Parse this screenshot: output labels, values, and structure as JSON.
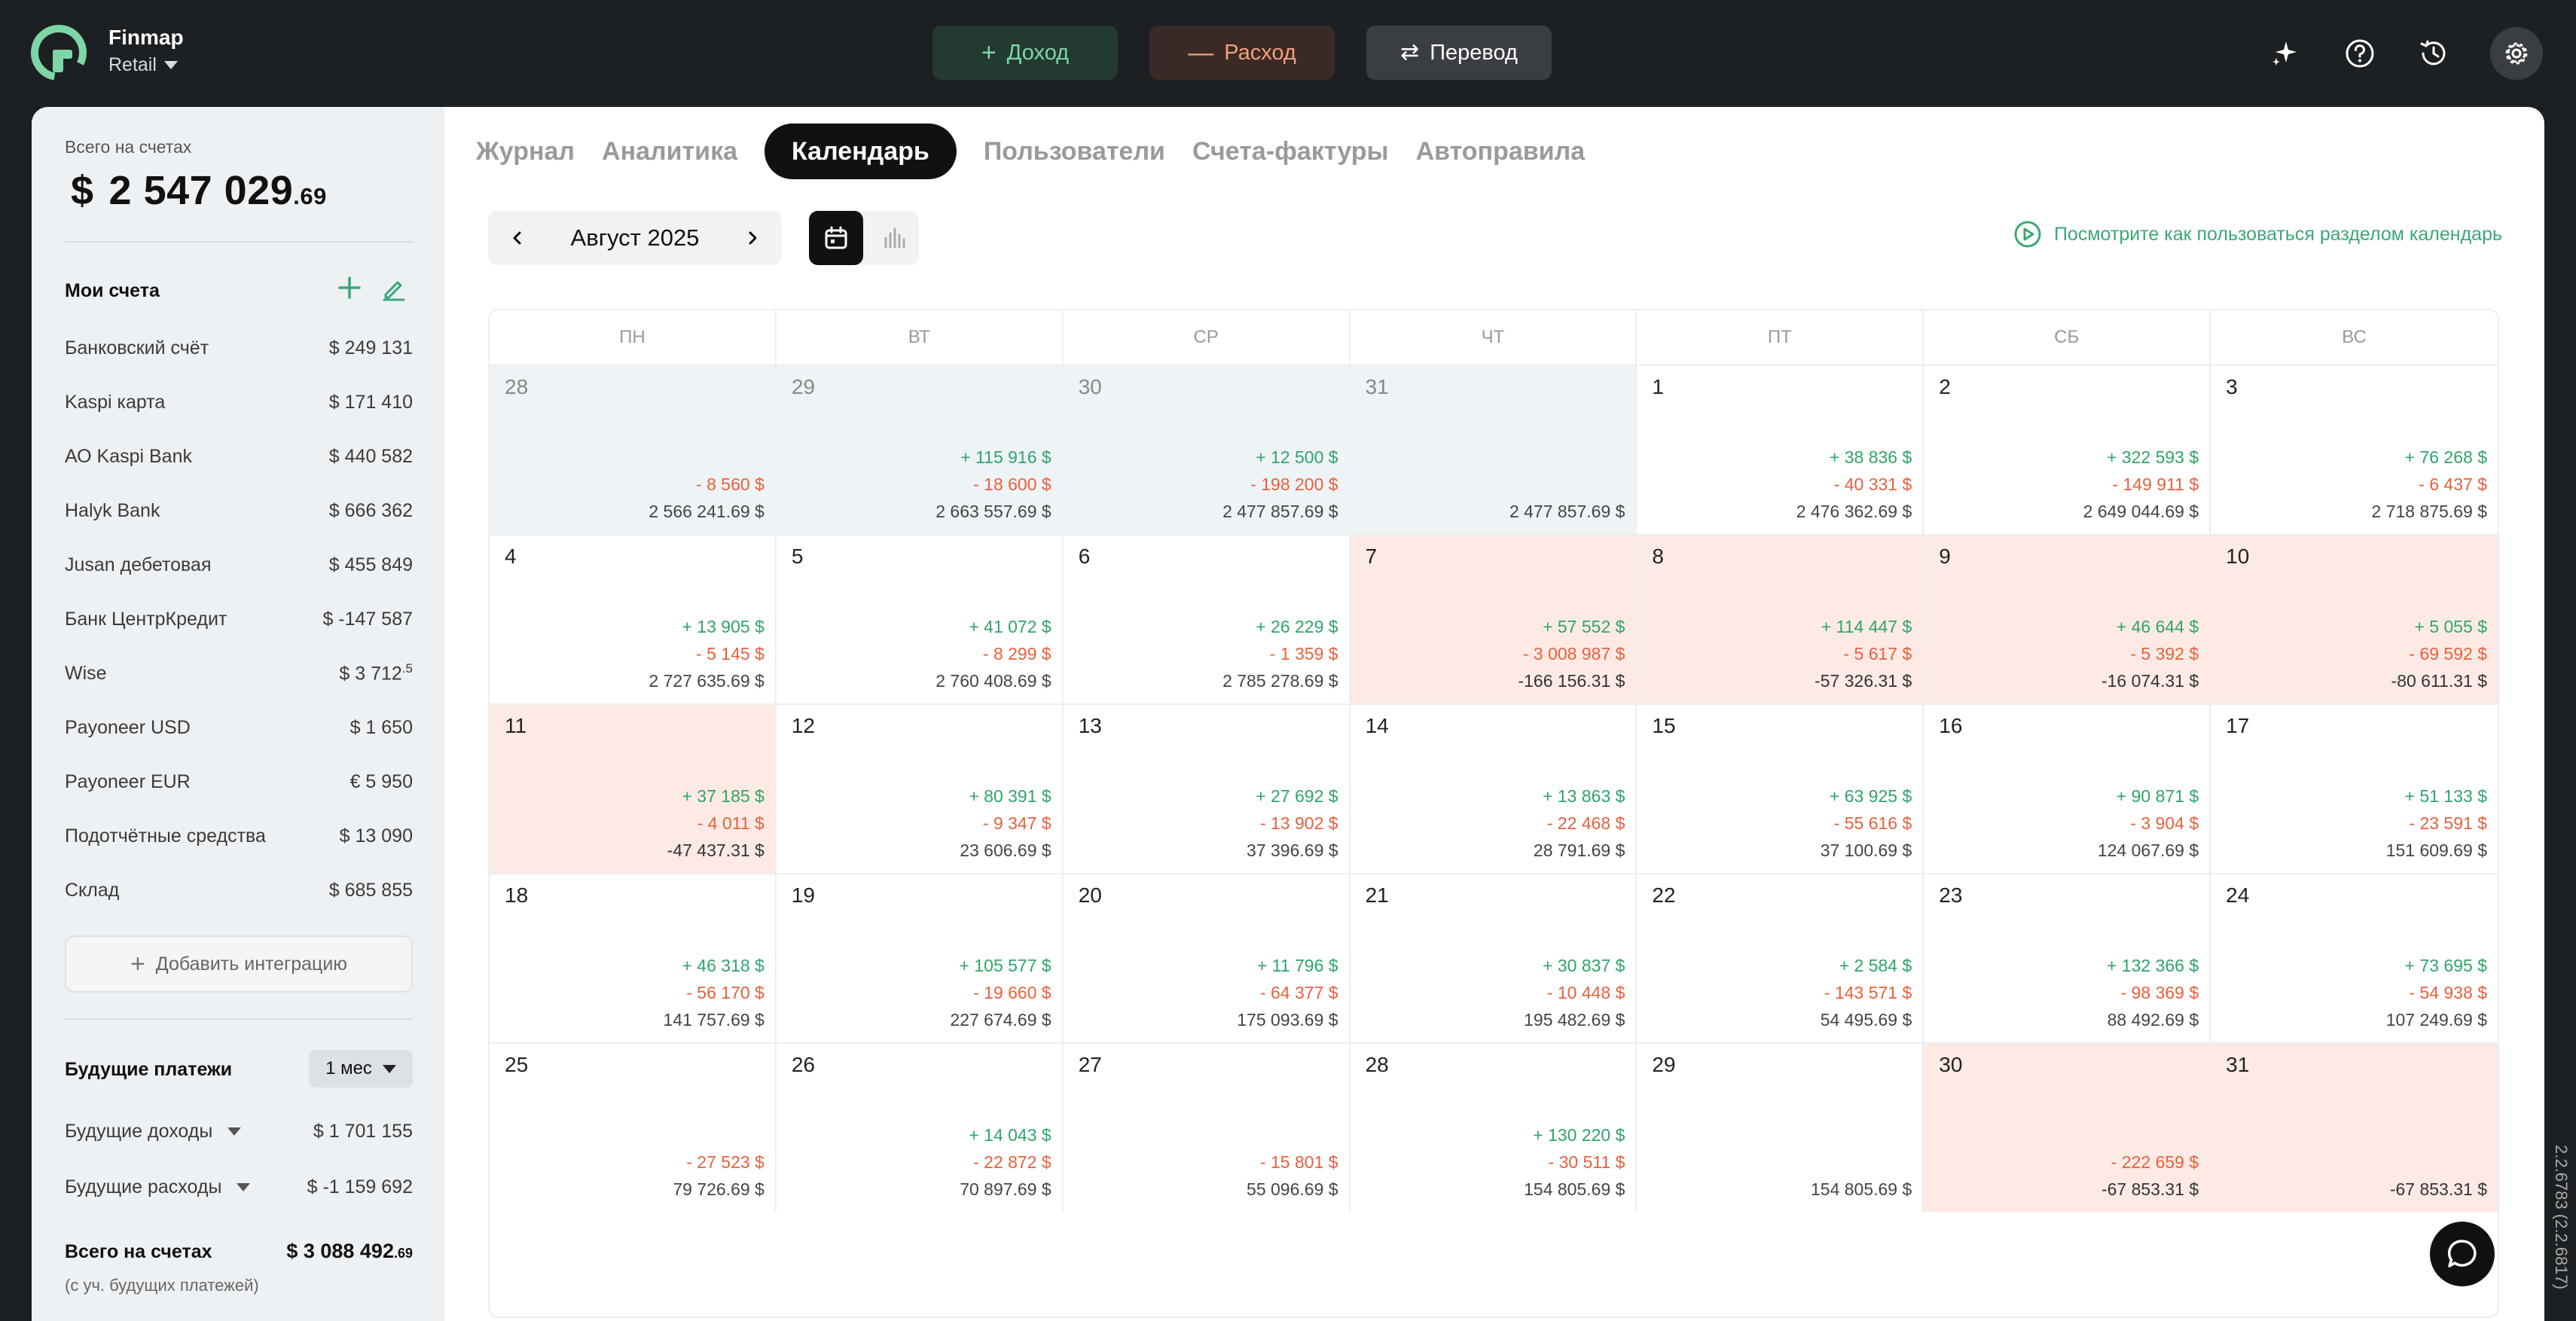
{
  "brand": {
    "name": "Finmap",
    "org": "Retail"
  },
  "actions": {
    "income": "Доход",
    "expense": "Расход",
    "transfer": "Перевод"
  },
  "sidebar": {
    "total_label": "Всего на счетах",
    "total_currency": "$",
    "total_main": "2 547 029",
    "total_cents": ".69",
    "accounts_title": "Мои счета",
    "accounts": [
      {
        "name": "Банковский счёт",
        "amount": "$  249 131"
      },
      {
        "name": "Kaspi карта",
        "amount": "$  171 410"
      },
      {
        "name": "АО Kaspi Bank",
        "amount": "$  440 582"
      },
      {
        "name": "Halyk Bank",
        "amount": "$  666 362"
      },
      {
        "name": "Jusan дебетовая",
        "amount": "$  455 849"
      },
      {
        "name": "Банк ЦентрКредит",
        "amount": "$  -147 587"
      },
      {
        "name": "Wise",
        "amount": "$  3 712",
        "amount_sup": ".5"
      },
      {
        "name": "Payoneer USD",
        "amount": "$  1 650"
      },
      {
        "name": "Payoneer EUR",
        "amount": "€  5 950"
      },
      {
        "name": "Подотчётные средства",
        "amount": "$  13 090"
      },
      {
        "name": "Склад",
        "amount": "$  685 855"
      }
    ],
    "add_integration": "Добавить интеграцию",
    "future_title": "Будущие платежи",
    "future_period": "1 мес",
    "future_income_label": "Будущие доходы",
    "future_income": "$  1 701 155",
    "future_expense_label": "Будущие расходы",
    "future_expense": "$  -1 159 692",
    "grand_label": "Всего на счетах",
    "grand_main": "$  3 088 492",
    "grand_cents": ".69",
    "grand_sub": "(с уч. будущих платежей)"
  },
  "tabs": [
    "Журнал",
    "Аналитика",
    "Календарь",
    "Пользователи",
    "Счета-фактуры",
    "Автоправила"
  ],
  "active_tab": 2,
  "calendar": {
    "month": "Август 2025",
    "help_link": "Посмотрите как пользоваться разделом календарь",
    "weekdays": [
      "ПН",
      "ВТ",
      "СР",
      "ЧТ",
      "ПТ",
      "СБ",
      "ВС"
    ],
    "days": [
      {
        "d": "28",
        "other": true,
        "exp": "- 8 560  $",
        "bal": "2 566 241.69  $"
      },
      {
        "d": "29",
        "other": true,
        "inc": "+ 115 916  $",
        "exp": "- 18 600  $",
        "bal": "2 663 557.69  $"
      },
      {
        "d": "30",
        "other": true,
        "inc": "+ 12 500  $",
        "exp": "- 198 200  $",
        "bal": "2 477 857.69  $"
      },
      {
        "d": "31",
        "other": true,
        "bal": "2 477 857.69  $"
      },
      {
        "d": "1",
        "inc": "+ 38 836  $",
        "exp": "- 40 331  $",
        "bal": "2 476 362.69  $"
      },
      {
        "d": "2",
        "inc": "+ 322 593  $",
        "exp": "- 149 911  $",
        "bal": "2 649 044.69  $"
      },
      {
        "d": "3",
        "inc": "+ 76 268  $",
        "exp": "- 6 437  $",
        "bal": "2 718 875.69  $"
      },
      {
        "d": "4",
        "inc": "+ 13 905  $",
        "exp": "- 5 145  $",
        "bal": "2 727 635.69  $"
      },
      {
        "d": "5",
        "inc": "+ 41 072  $",
        "exp": "- 8 299  $",
        "bal": "2 760 408.69  $"
      },
      {
        "d": "6",
        "inc": "+ 26 229  $",
        "exp": "- 1 359  $",
        "bal": "2 785 278.69  $"
      },
      {
        "d": "7",
        "neg": true,
        "inc": "+ 57 552  $",
        "exp": "- 3 008 987  $",
        "bal": "-166 156.31  $"
      },
      {
        "d": "8",
        "neg": true,
        "inc": "+ 114 447  $",
        "exp": "- 5 617  $",
        "bal": "-57 326.31  $"
      },
      {
        "d": "9",
        "neg": true,
        "inc": "+ 46 644  $",
        "exp": "- 5 392  $",
        "bal": "-16 074.31  $"
      },
      {
        "d": "10",
        "neg": true,
        "inc": "+ 5 055  $",
        "exp": "- 69 592  $",
        "bal": "-80 611.31  $"
      },
      {
        "d": "11",
        "neg": true,
        "inc": "+ 37 185  $",
        "exp": "- 4 011  $",
        "bal": "-47 437.31  $"
      },
      {
        "d": "12",
        "inc": "+ 80 391  $",
        "exp": "- 9 347  $",
        "bal": "23 606.69  $"
      },
      {
        "d": "13",
        "inc": "+ 27 692  $",
        "exp": "- 13 902  $",
        "bal": "37 396.69  $"
      },
      {
        "d": "14",
        "inc": "+ 13 863  $",
        "exp": "- 22 468  $",
        "bal": "28 791.69  $"
      },
      {
        "d": "15",
        "inc": "+ 63 925  $",
        "exp": "- 55 616  $",
        "bal": "37 100.69  $"
      },
      {
        "d": "16",
        "inc": "+ 90 871  $",
        "exp": "- 3 904  $",
        "bal": "124 067.69  $"
      },
      {
        "d": "17",
        "inc": "+ 51 133  $",
        "exp": "- 23 591  $",
        "bal": "151 609.69  $"
      },
      {
        "d": "18",
        "inc": "+ 46 318  $",
        "exp": "- 56 170  $",
        "bal": "141 757.69  $"
      },
      {
        "d": "19",
        "inc": "+ 105 577  $",
        "exp": "- 19 660  $",
        "bal": "227 674.69  $"
      },
      {
        "d": "20",
        "inc": "+ 11 796  $",
        "exp": "- 64 377  $",
        "bal": "175 093.69  $"
      },
      {
        "d": "21",
        "inc": "+ 30 837  $",
        "exp": "- 10 448  $",
        "bal": "195 482.69  $"
      },
      {
        "d": "22",
        "inc": "+ 2 584  $",
        "exp": "- 143 571  $",
        "bal": "54 495.69  $"
      },
      {
        "d": "23",
        "inc": "+ 132 366  $",
        "exp": "- 98 369  $",
        "bal": "88 492.69  $"
      },
      {
        "d": "24",
        "inc": "+ 73 695  $",
        "exp": "- 54 938  $",
        "bal": "107 249.69  $"
      },
      {
        "d": "25",
        "exp": "- 27 523  $",
        "bal": "79 726.69  $"
      },
      {
        "d": "26",
        "inc": "+ 14 043  $",
        "exp": "- 22 872  $",
        "bal": "70 897.69  $"
      },
      {
        "d": "27",
        "exp": "- 15 801  $",
        "bal": "55 096.69  $"
      },
      {
        "d": "28",
        "inc": "+ 130 220  $",
        "exp": "- 30 511  $",
        "bal": "154 805.69  $"
      },
      {
        "d": "29",
        "bal": "154 805.69  $"
      },
      {
        "d": "30",
        "neg": true,
        "exp": "- 222 659  $",
        "bal": "-67 853.31  $"
      },
      {
        "d": "31",
        "neg": true,
        "bal": "-67 853.31  $"
      }
    ]
  },
  "version": "2.2.6783 (2.2.6817)",
  "colors": {
    "income": "#2fa46a",
    "expense": "#e8603c",
    "negative_day_bg": "#fdeae5",
    "other_month_bg": "#eef3f6",
    "accent": "#3aa876"
  }
}
